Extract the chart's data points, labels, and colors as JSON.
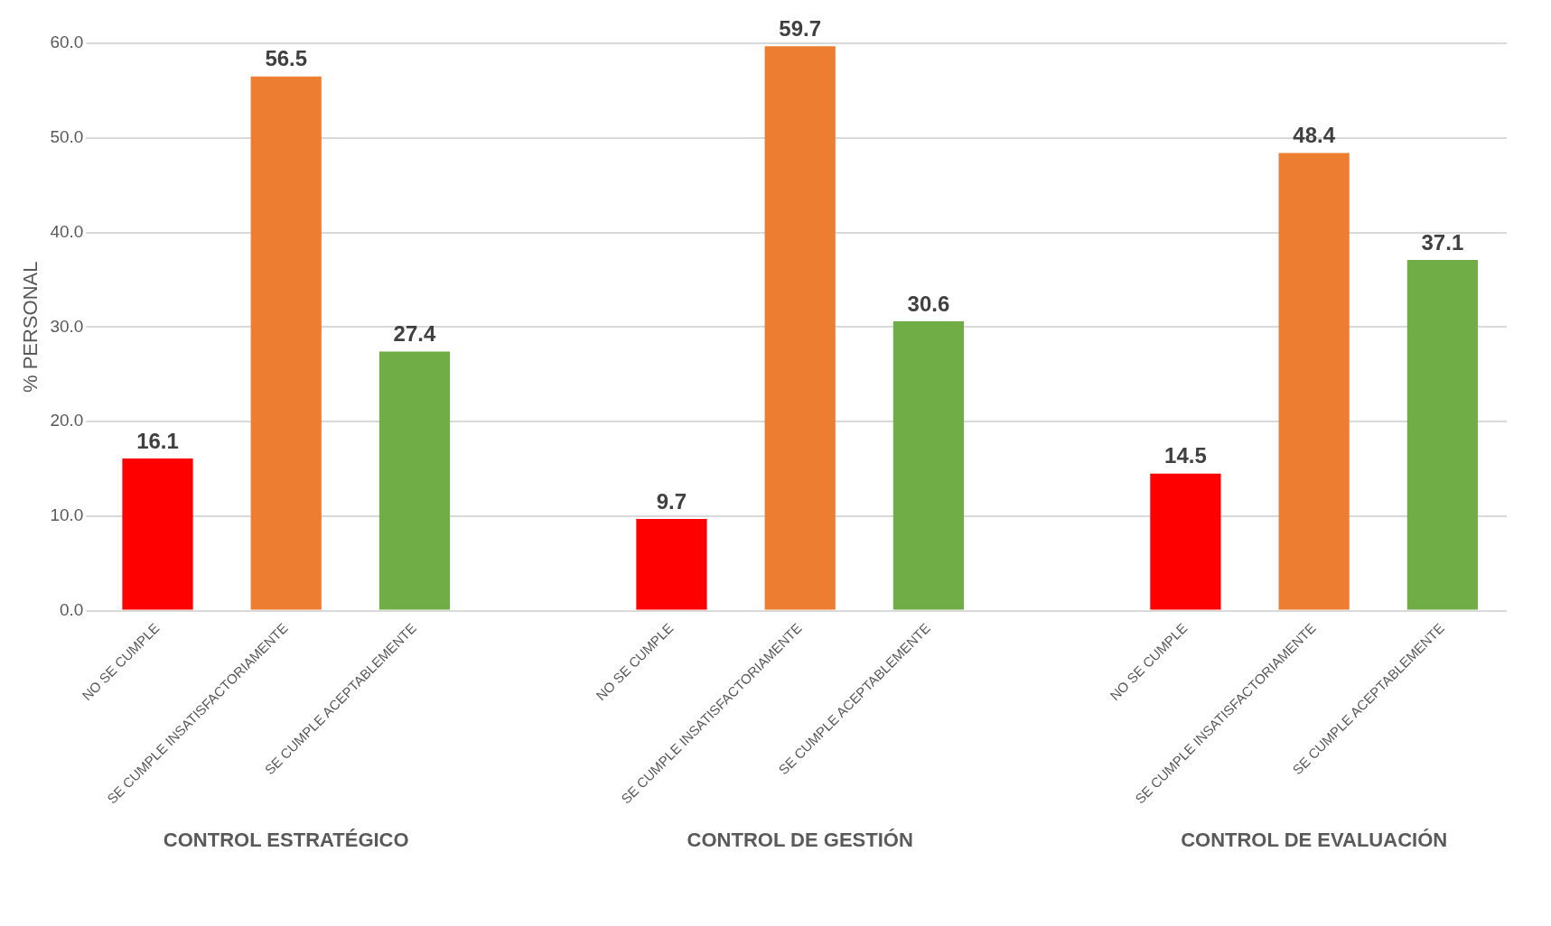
{
  "chart_data": {
    "type": "bar",
    "ylabel": "% PERSONAL",
    "categories": [
      "NO SE CUMPLE",
      "SE CUMPLE INSATISFACTORIAMENTE",
      "SE CUMPLE ACEPTABLEMENTE",
      null,
      "NO SE CUMPLE",
      "SE CUMPLE INSATISFACTORIAMENTE",
      "SE CUMPLE ACEPTABLEMENTE",
      null,
      "NO SE CUMPLE",
      "SE CUMPLE INSATISFACTORIAMENTE",
      "SE CUMPLE ACEPTABLEMENTE"
    ],
    "values": [
      16.1,
      56.5,
      27.4,
      null,
      9.7,
      59.7,
      30.6,
      null,
      14.5,
      48.4,
      37.1
    ],
    "colors": [
      "#ff0000",
      "#ed7d31",
      "#70ad47",
      "#ffffff",
      "#ff0000",
      "#ed7d31",
      "#70ad47",
      "#ffffff",
      "#ff0000",
      "#ed7d31",
      "#70ad47"
    ],
    "ylim": [
      0,
      60
    ],
    "yticks": [
      {
        "value": 0,
        "label": "0.0"
      },
      {
        "value": 10,
        "label": "10.0"
      },
      {
        "value": 20,
        "label": "20.0"
      },
      {
        "value": 30,
        "label": "30.0"
      },
      {
        "value": 40,
        "label": "40.0"
      },
      {
        "value": 50,
        "label": "50.0"
      },
      {
        "value": 60,
        "label": "60.0"
      }
    ],
    "grid": "y",
    "data_labels": true,
    "legend": false,
    "annotations": [
      "CONTROL ESTRATÉGICO",
      "CONTROL DE GESTIÓN",
      "CONTROL DE EVALUACIÓN"
    ]
  }
}
